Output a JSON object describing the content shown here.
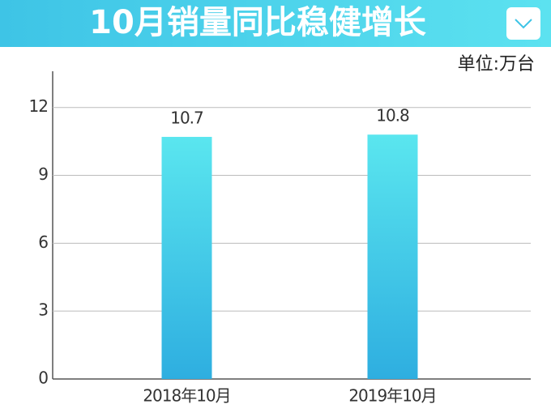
{
  "chart_data": {
    "type": "bar",
    "title": "10月销量同比稳健增长",
    "unit_label": "单位:万台",
    "categories": [
      "2018年10月",
      "2019年10月"
    ],
    "values": [
      10.7,
      10.8
    ],
    "color": "#5ae6ef",
    "ylim": [
      0,
      13.6
    ],
    "yticks": [
      0,
      3,
      6,
      9,
      12
    ],
    "grid": true
  }
}
